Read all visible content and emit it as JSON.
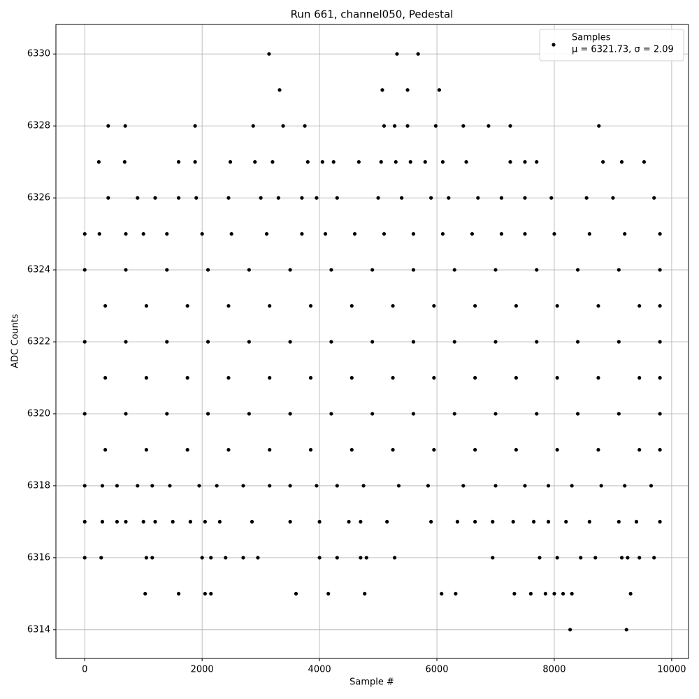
{
  "chart_data": {
    "type": "scatter",
    "title": "Run 661, channel050, Pedestal",
    "x_label": "Sample #",
    "y_label": "ADC Counts",
    "xlim": [
      -491,
      10287
    ],
    "ylim": [
      6313.2,
      6330.82
    ],
    "xticks": [
      0,
      2000,
      4000,
      6000,
      8000,
      10000
    ],
    "yticks": [
      6314,
      6316,
      6318,
      6320,
      6322,
      6324,
      6326,
      6328,
      6330
    ],
    "grid": true,
    "legend_position": "upper right",
    "legend_note": "μ = 6321.73, σ = 2.09",
    "series": [
      {
        "name": "Samples",
        "color": "#000000",
        "x": [
          0,
          700,
          1400,
          2100,
          2800,
          3500,
          4200,
          4900,
          5600,
          6300,
          7000,
          7700,
          8400,
          9100,
          9800,
          350,
          1050,
          1750,
          2450,
          3150,
          3850,
          4550,
          5250,
          5950,
          6650,
          7350,
          8050,
          8750,
          9450,
          9800,
          0,
          700,
          1400,
          2100,
          2800,
          3500,
          4200,
          4900,
          5600,
          6300,
          7000,
          7700,
          8400,
          9100,
          9800,
          350,
          1050,
          1750,
          2450,
          3150,
          3850,
          4550,
          5250,
          5950,
          6650,
          7350,
          8050,
          8750,
          9450,
          9800,
          0,
          700,
          1400,
          2100,
          2800,
          3500,
          4200,
          4900,
          5600,
          6300,
          7000,
          7700,
          8400,
          9100,
          9800,
          350,
          1050,
          1750,
          2450,
          3150,
          3850,
          4550,
          5250,
          5950,
          6650,
          7350,
          8050,
          8750,
          9450,
          9800,
          0,
          250,
          700,
          1000,
          1400,
          2000,
          2500,
          3100,
          3700,
          4100,
          4600,
          5100,
          5600,
          6100,
          6600,
          7100,
          7500,
          8000,
          8600,
          9200,
          9800,
          400,
          900,
          1200,
          1600,
          1900,
          2450,
          3000,
          3300,
          3700,
          3950,
          4300,
          5000,
          5400,
          5900,
          6200,
          6700,
          7100,
          7500,
          7950,
          8550,
          9000,
          9700,
          0,
          300,
          550,
          900,
          1150,
          1450,
          1950,
          2250,
          2700,
          3150,
          3500,
          3950,
          4300,
          4750,
          5350,
          5850,
          6450,
          7000,
          7500,
          7900,
          8300,
          8800,
          9200,
          9650,
          0,
          300,
          550,
          700,
          1000,
          1200,
          1500,
          1800,
          2050,
          2300,
          2850,
          3500,
          4000,
          4500,
          4700,
          5150,
          5900,
          6350,
          6650,
          6950,
          7300,
          7650,
          7900,
          8200,
          8600,
          9100,
          9400,
          9800,
          0,
          280,
          1050,
          1150,
          2000,
          2150,
          2400,
          2700,
          2950,
          4000,
          4300,
          4700,
          4800,
          5280,
          6950,
          7750,
          8050,
          8450,
          8700,
          9150,
          9250,
          9450,
          9700,
          1030,
          1600,
          2050,
          2150,
          3600,
          4150,
          4770,
          6080,
          6320,
          7320,
          7600,
          7850,
          8000,
          8150,
          8300,
          9300,
          8270,
          9230,
          240,
          680,
          1600,
          1880,
          2480,
          2900,
          3200,
          3800,
          4050,
          4240,
          4670,
          5050,
          5300,
          5550,
          5800,
          6100,
          6500,
          7250,
          7500,
          7700,
          8830,
          9150,
          9530,
          400,
          690,
          1880,
          2870,
          3380,
          3750,
          5100,
          5280,
          5500,
          5980,
          6450,
          6880,
          7250,
          8760,
          3320,
          5070,
          5500,
          6040,
          3140,
          5320,
          5680
        ],
        "values": [
          6324,
          6324,
          6324,
          6324,
          6324,
          6324,
          6324,
          6324,
          6324,
          6324,
          6324,
          6324,
          6324,
          6324,
          6324,
          6323,
          6323,
          6323,
          6323,
          6323,
          6323,
          6323,
          6323,
          6323,
          6323,
          6323,
          6323,
          6323,
          6323,
          6323,
          6322,
          6322,
          6322,
          6322,
          6322,
          6322,
          6322,
          6322,
          6322,
          6322,
          6322,
          6322,
          6322,
          6322,
          6322,
          6321,
          6321,
          6321,
          6321,
          6321,
          6321,
          6321,
          6321,
          6321,
          6321,
          6321,
          6321,
          6321,
          6321,
          6321,
          6320,
          6320,
          6320,
          6320,
          6320,
          6320,
          6320,
          6320,
          6320,
          6320,
          6320,
          6320,
          6320,
          6320,
          6320,
          6319,
          6319,
          6319,
          6319,
          6319,
          6319,
          6319,
          6319,
          6319,
          6319,
          6319,
          6319,
          6319,
          6319,
          6319,
          6325,
          6325,
          6325,
          6325,
          6325,
          6325,
          6325,
          6325,
          6325,
          6325,
          6325,
          6325,
          6325,
          6325,
          6325,
          6325,
          6325,
          6325,
          6325,
          6325,
          6325,
          6326,
          6326,
          6326,
          6326,
          6326,
          6326,
          6326,
          6326,
          6326,
          6326,
          6326,
          6326,
          6326,
          6326,
          6326,
          6326,
          6326,
          6326,
          6326,
          6326,
          6326,
          6326,
          6318,
          6318,
          6318,
          6318,
          6318,
          6318,
          6318,
          6318,
          6318,
          6318,
          6318,
          6318,
          6318,
          6318,
          6318,
          6318,
          6318,
          6318,
          6318,
          6318,
          6318,
          6318,
          6318,
          6318,
          6317,
          6317,
          6317,
          6317,
          6317,
          6317,
          6317,
          6317,
          6317,
          6317,
          6317,
          6317,
          6317,
          6317,
          6317,
          6317,
          6317,
          6317,
          6317,
          6317,
          6317,
          6317,
          6317,
          6317,
          6317,
          6317,
          6317,
          6317,
          6316,
          6316,
          6316,
          6316,
          6316,
          6316,
          6316,
          6316,
          6316,
          6316,
          6316,
          6316,
          6316,
          6316,
          6316,
          6316,
          6316,
          6316,
          6316,
          6316,
          6316,
          6316,
          6316,
          6315,
          6315,
          6315,
          6315,
          6315,
          6315,
          6315,
          6315,
          6315,
          6315,
          6315,
          6315,
          6315,
          6315,
          6315,
          6315,
          6314,
          6314,
          6327,
          6327,
          6327,
          6327,
          6327,
          6327,
          6327,
          6327,
          6327,
          6327,
          6327,
          6327,
          6327,
          6327,
          6327,
          6327,
          6327,
          6327,
          6327,
          6327,
          6327,
          6327,
          6327,
          6328,
          6328,
          6328,
          6328,
          6328,
          6328,
          6328,
          6328,
          6328,
          6328,
          6328,
          6328,
          6328,
          6328,
          6329,
          6329,
          6329,
          6329,
          6330,
          6330,
          6330
        ]
      }
    ]
  }
}
